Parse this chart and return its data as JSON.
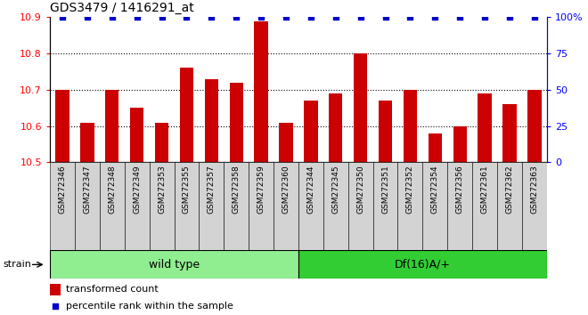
{
  "title": "GDS3479 / 1416291_at",
  "samples": [
    "GSM272346",
    "GSM272347",
    "GSM272348",
    "GSM272349",
    "GSM272353",
    "GSM272355",
    "GSM272357",
    "GSM272358",
    "GSM272359",
    "GSM272360",
    "GSM272344",
    "GSM272345",
    "GSM272350",
    "GSM272351",
    "GSM272352",
    "GSM272354",
    "GSM272356",
    "GSM272361",
    "GSM272362",
    "GSM272363"
  ],
  "bar_values": [
    10.7,
    10.61,
    10.7,
    10.65,
    10.61,
    10.76,
    10.73,
    10.72,
    10.89,
    10.61,
    10.67,
    10.69,
    10.8,
    10.67,
    10.7,
    10.58,
    10.6,
    10.69,
    10.66,
    10.7
  ],
  "percentile_values": [
    100,
    100,
    100,
    100,
    100,
    100,
    100,
    100,
    100,
    100,
    100,
    100,
    100,
    100,
    100,
    100,
    100,
    100,
    100,
    100
  ],
  "bar_color": "#cc0000",
  "dot_color": "#0000cc",
  "ylim_left": [
    10.5,
    10.9
  ],
  "ylim_right": [
    0,
    100
  ],
  "yticks_left": [
    10.5,
    10.6,
    10.7,
    10.8,
    10.9
  ],
  "yticks_right": [
    0,
    25,
    50,
    75,
    100
  ],
  "ytick_labels_right": [
    "0",
    "25",
    "50",
    "75",
    "100%"
  ],
  "grid_values": [
    10.6,
    10.7,
    10.8
  ],
  "wild_type_count": 10,
  "group1_label": "wild type",
  "group2_label": "Df(16)A/+",
  "strain_label": "strain",
  "legend_bar_label": "transformed count",
  "legend_dot_label": "percentile rank within the sample",
  "label_bg_color": "#d3d3d3",
  "plot_bg": "#ffffff",
  "group1_color": "#90ee90",
  "group2_color": "#32cd32",
  "dot_pct": 100
}
